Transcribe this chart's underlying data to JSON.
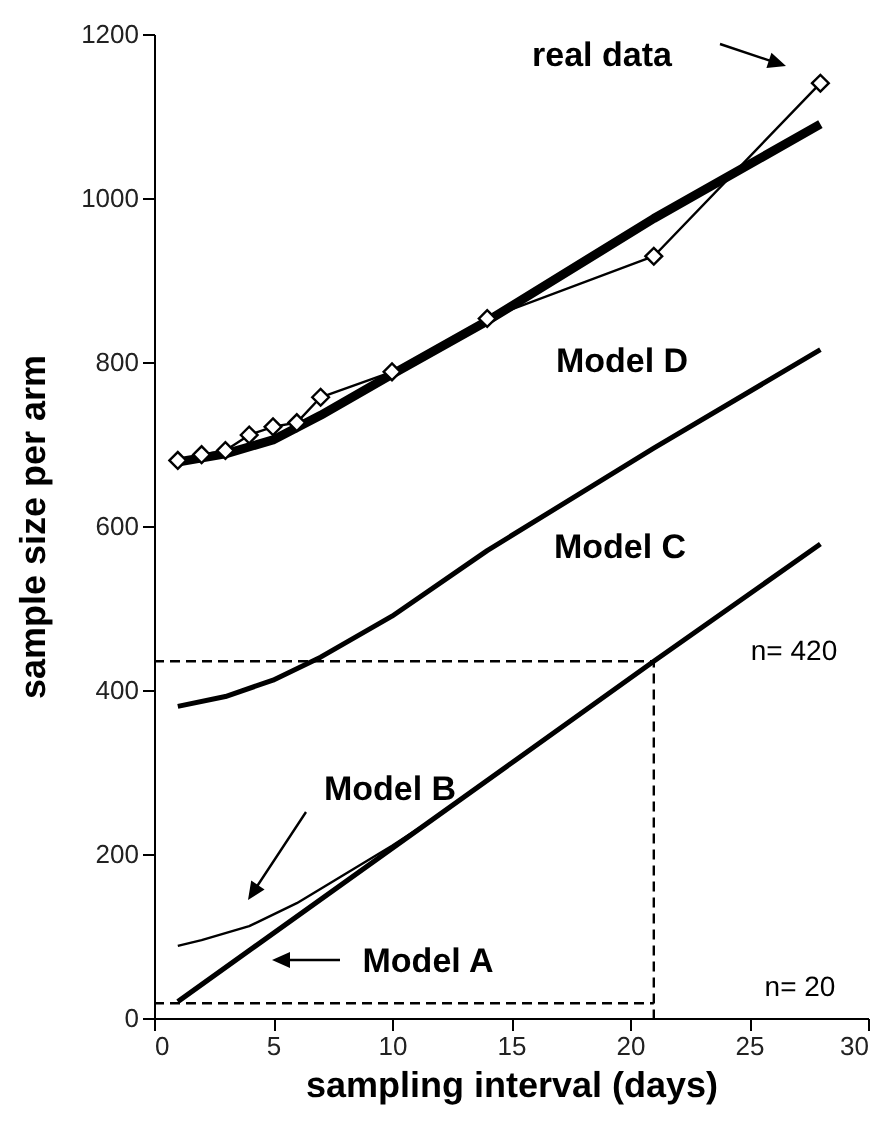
{
  "chart_data": {
    "type": "line",
    "xlabel": "sampling interval (days)",
    "ylabel": "sample size per arm",
    "xlim": [
      0,
      30
    ],
    "xticks": [
      0,
      5,
      10,
      15,
      20,
      25,
      30
    ],
    "ylim": [
      0,
      1200
    ],
    "yticks": [
      0,
      200,
      400,
      600,
      800,
      1000,
      1200
    ],
    "grid": false,
    "series": [
      {
        "color": "#000000",
        "x": [
          1,
          3,
          5,
          7,
          10,
          14,
          21,
          28
        ],
        "values": [
          678,
          688,
          705,
          735,
          785,
          850,
          975,
          1090
        ],
        "line_style": "solid",
        "marker": "none"
      },
      {
        "color": "#000000",
        "x": [
          1,
          3,
          5,
          7,
          10,
          14,
          21,
          28
        ],
        "values": [
          380,
          392,
          412,
          440,
          490,
          570,
          695,
          815
        ],
        "line_style": "solid",
        "marker": "none"
      },
      {
        "color": "#000000",
        "x": [
          1,
          2,
          4,
          6,
          8,
          10,
          12,
          13
        ],
        "values": [
          88,
          95,
          112,
          140,
          175,
          210,
          248,
          268
        ],
        "line_style": "solid",
        "marker": "none"
      },
      {
        "color": "#000000",
        "x": [
          1,
          21,
          28
        ],
        "values": [
          20,
          435,
          578
        ],
        "line_style": "solid",
        "marker": "none"
      },
      {
        "color": "#000000",
        "x": [
          1,
          2,
          3,
          4,
          5,
          6,
          7,
          10,
          14,
          21,
          28
        ],
        "values": [
          680,
          687,
          692,
          711,
          721,
          726,
          757,
          788,
          853,
          929,
          1140
        ],
        "line_style": "solid",
        "marker": "diamond"
      },
      {
        "color": "#000000",
        "x": [
          0,
          21,
          21
        ],
        "values": [
          435,
          435,
          0
        ],
        "line_style": "dashed",
        "marker": "none"
      },
      {
        "color": "#000000",
        "x": [
          0,
          21
        ],
        "values": [
          18,
          18
        ],
        "line_style": "dashed",
        "marker": "none"
      }
    ],
    "annotations": [
      "real data",
      "Model D",
      "Model C",
      "Model B",
      "Model A",
      "n= 420",
      "n= 20"
    ]
  }
}
